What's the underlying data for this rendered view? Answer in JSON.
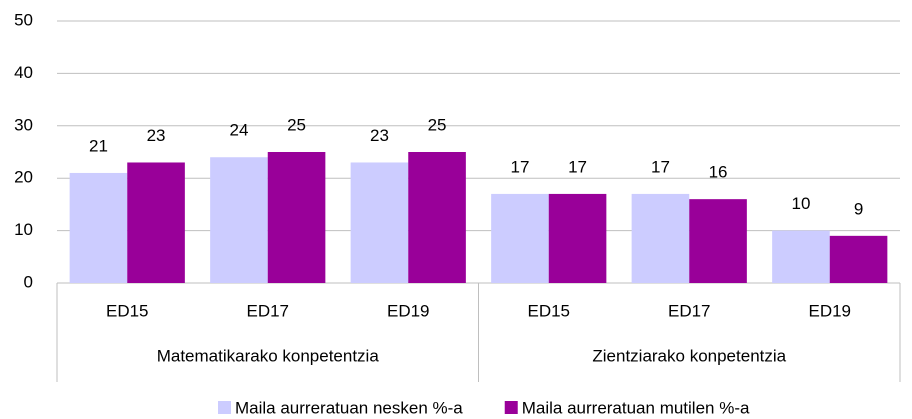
{
  "chart_data": {
    "type": "bar",
    "categories": [
      "ED15",
      "ED17",
      "ED19",
      "ED15",
      "ED17",
      "ED19"
    ],
    "groups": [
      "Matematikarako konpetentzia",
      "Zientziarako konpetentzia"
    ],
    "series": [
      {
        "name": "Maila aurreratuan nesken %-a",
        "color": "#ccccff",
        "values": [
          21,
          24,
          23,
          17,
          17,
          10
        ]
      },
      {
        "name": "Maila aurreratuan mutilen %-a",
        "color": "#990099",
        "values": [
          23,
          25,
          25,
          17,
          16,
          9
        ]
      }
    ],
    "ylim": [
      0,
      50
    ],
    "yticks": [
      0,
      10,
      20,
      30,
      40,
      50
    ],
    "grid": true,
    "legend": "bottom"
  }
}
